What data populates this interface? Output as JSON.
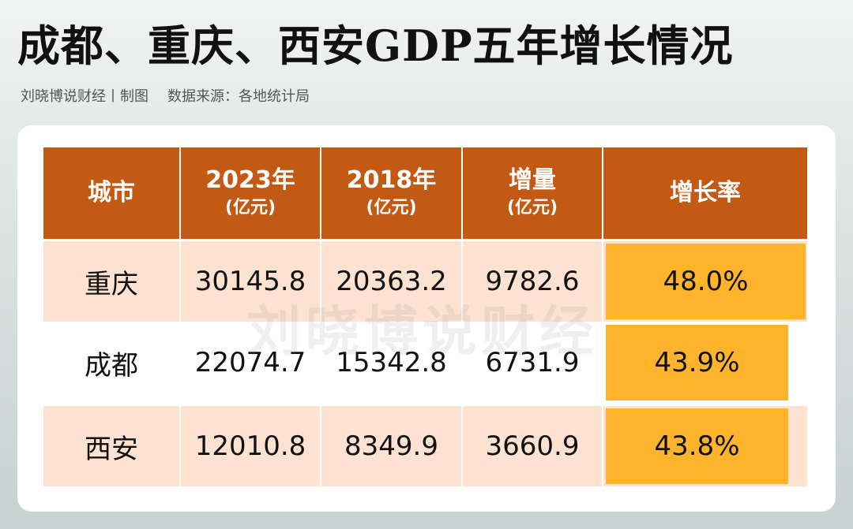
{
  "title": "成都、重庆、西安GDP五年增长情况",
  "subtitle": {
    "author": "刘晓博说财经丨制图",
    "source": "数据来源：各地统计局"
  },
  "watermark": "刘晓博说财经",
  "colors": {
    "header": "#c35a14",
    "row_shade": "#fde2d2",
    "rate_bar": "#ffb42b"
  },
  "chart_data": {
    "type": "table",
    "columns": [
      {
        "title": "城市",
        "unit": ""
      },
      {
        "title": "2023年",
        "unit": "(亿元)"
      },
      {
        "title": "2018年",
        "unit": "(亿元)"
      },
      {
        "title": "增量",
        "unit": "(亿元)"
      },
      {
        "title": "增长率",
        "unit": ""
      }
    ],
    "rows": [
      {
        "city": "重庆",
        "gdp_2023": "30145.8",
        "gdp_2018": "20363.2",
        "increase": "9782.6",
        "growth": "48.0%",
        "growth_value": 48.0
      },
      {
        "city": "成都",
        "gdp_2023": "22074.7",
        "gdp_2018": "15342.8",
        "increase": "6731.9",
        "growth": "43.9%",
        "growth_value": 43.9
      },
      {
        "city": "西安",
        "gdp_2023": "12010.8",
        "gdp_2018": "8349.9",
        "increase": "3660.9",
        "growth": "43.8%",
        "growth_value": 43.8
      }
    ]
  }
}
